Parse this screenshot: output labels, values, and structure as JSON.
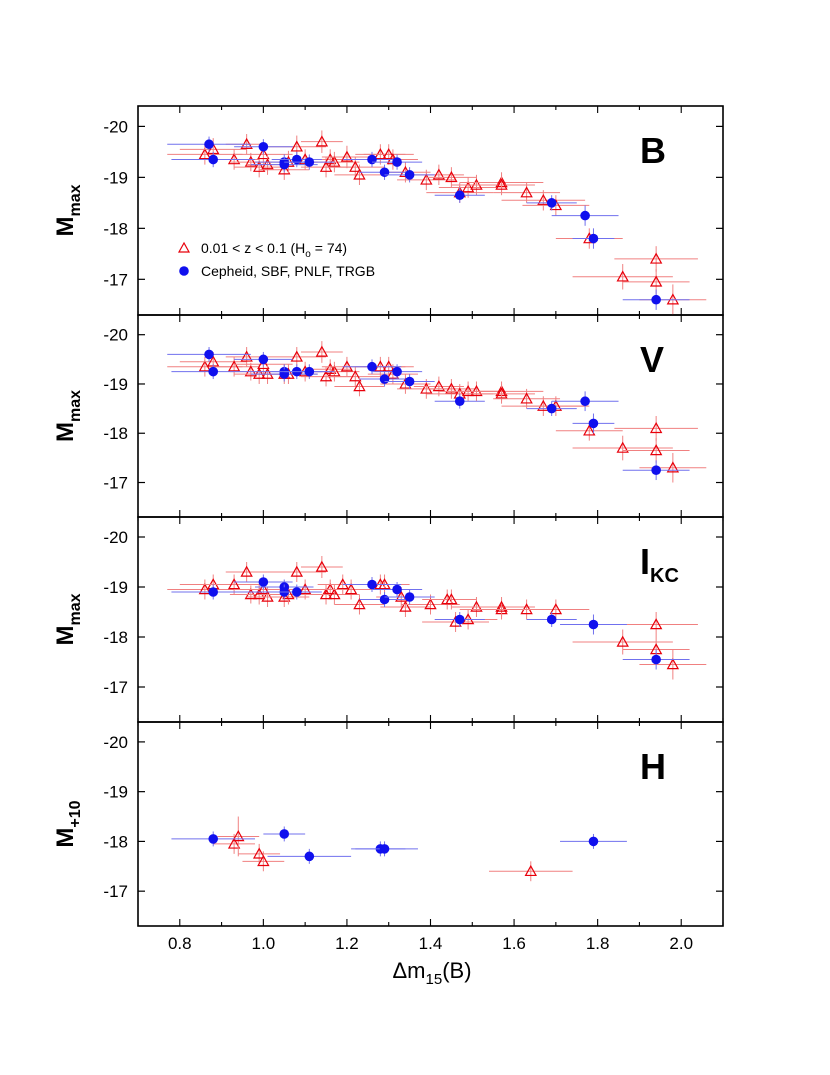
{
  "chart_data": {
    "type": "scatter",
    "xlabel_main": "Δm",
    "xlabel_sub": "15",
    "xlabel_tail": "(B)",
    "xlim": [
      0.7,
      2.1
    ],
    "xticks": [
      "0.8",
      "1.0",
      "1.2",
      "1.4",
      "1.6",
      "1.8",
      "2.0"
    ],
    "ylim": [
      -16.3,
      -20.4
    ],
    "yticks": [
      "-20",
      "-19",
      "-18",
      "-17"
    ],
    "legend": {
      "position": "lower-left of top panel",
      "triangle_pre": "0.01 < z < 0.1 (H",
      "triangle_sub": "o",
      "triangle_post": " = 74)",
      "circle_label": "Cepheid, SBF, PNLF, TRGB"
    },
    "colors": {
      "triangle": "#e8000b",
      "circle": "#1010ee",
      "tri_err": "#f08080",
      "circ_err": "#7070ee"
    },
    "panels": [
      {
        "band": "B",
        "band_sub": "",
        "ylabel_main": "M",
        "ylabel_sub": "max",
        "has_legend": true,
        "triangles": [
          [
            0.86,
            -19.45,
            0.09,
            0.2
          ],
          [
            0.88,
            -19.55,
            0.08,
            0.22
          ],
          [
            0.93,
            -19.35,
            0.06,
            0.2
          ],
          [
            0.96,
            -19.65,
            0.05,
            0.2
          ],
          [
            0.97,
            -19.3,
            0.05,
            0.18
          ],
          [
            0.99,
            -19.2,
            0.06,
            0.2
          ],
          [
            1.0,
            -19.45,
            0.07,
            0.22
          ],
          [
            1.01,
            -19.25,
            0.05,
            0.2
          ],
          [
            1.05,
            -19.15,
            0.06,
            0.2
          ],
          [
            1.06,
            -19.3,
            0.07,
            0.22
          ],
          [
            1.08,
            -19.6,
            0.07,
            0.22
          ],
          [
            1.1,
            -19.35,
            0.06,
            0.2
          ],
          [
            1.14,
            -19.7,
            0.05,
            0.22
          ],
          [
            1.15,
            -19.2,
            0.06,
            0.2
          ],
          [
            1.16,
            -19.35,
            0.05,
            0.2
          ],
          [
            1.17,
            -19.3,
            0.06,
            0.2
          ],
          [
            1.2,
            -19.4,
            0.06,
            0.22
          ],
          [
            1.22,
            -19.2,
            0.07,
            0.2
          ],
          [
            1.23,
            -19.05,
            0.06,
            0.2
          ],
          [
            1.28,
            -19.45,
            0.06,
            0.2
          ],
          [
            1.3,
            -19.45,
            0.06,
            0.2
          ],
          [
            1.31,
            -19.35,
            0.06,
            0.2
          ],
          [
            1.34,
            -19.1,
            0.06,
            0.2
          ],
          [
            1.39,
            -18.95,
            0.07,
            0.2
          ],
          [
            1.42,
            -19.05,
            0.06,
            0.2
          ],
          [
            1.45,
            -19.0,
            0.06,
            0.2
          ],
          [
            1.47,
            -18.7,
            0.08,
            0.2
          ],
          [
            1.49,
            -18.8,
            0.07,
            0.2
          ],
          [
            1.51,
            -18.85,
            0.06,
            0.2
          ],
          [
            1.57,
            -18.9,
            0.1,
            0.2
          ],
          [
            1.57,
            -18.85,
            0.08,
            0.2
          ],
          [
            1.63,
            -18.7,
            0.08,
            0.2
          ],
          [
            1.67,
            -18.55,
            0.1,
            0.2
          ],
          [
            1.7,
            -18.45,
            0.08,
            0.2
          ],
          [
            1.78,
            -17.8,
            0.08,
            0.2
          ],
          [
            1.86,
            -17.05,
            0.12,
            0.25
          ],
          [
            1.94,
            -17.4,
            0.1,
            0.25
          ],
          [
            1.94,
            -16.95,
            0.08,
            0.25
          ],
          [
            1.98,
            -16.6,
            0.08,
            0.3
          ]
        ],
        "circles": [
          [
            0.87,
            -19.65,
            0.1,
            0.15
          ],
          [
            0.88,
            -19.35,
            0.1,
            0.15
          ],
          [
            1.0,
            -19.6,
            0.07,
            0.15
          ],
          [
            1.05,
            -19.3,
            0.07,
            0.15
          ],
          [
            1.05,
            -19.25,
            0.08,
            0.15
          ],
          [
            1.08,
            -19.35,
            0.06,
            0.15
          ],
          [
            1.11,
            -19.3,
            0.06,
            0.15
          ],
          [
            1.26,
            -19.35,
            0.07,
            0.15
          ],
          [
            1.29,
            -19.1,
            0.06,
            0.15
          ],
          [
            1.32,
            -19.3,
            0.06,
            0.15
          ],
          [
            1.35,
            -19.05,
            0.06,
            0.15
          ],
          [
            1.47,
            -18.65,
            0.06,
            0.15
          ],
          [
            1.69,
            -18.5,
            0.06,
            0.15
          ],
          [
            1.77,
            -18.25,
            0.08,
            0.2
          ],
          [
            1.79,
            -17.8,
            0.05,
            0.2
          ],
          [
            1.94,
            -16.6,
            0.08,
            0.2
          ]
        ]
      },
      {
        "band": "V",
        "band_sub": "",
        "ylabel_main": "M",
        "ylabel_sub": "max",
        "has_legend": false,
        "triangles": [
          [
            0.86,
            -19.35,
            0.09,
            0.2
          ],
          [
            0.88,
            -19.45,
            0.08,
            0.2
          ],
          [
            0.93,
            -19.35,
            0.06,
            0.2
          ],
          [
            0.96,
            -19.55,
            0.05,
            0.2
          ],
          [
            0.97,
            -19.25,
            0.05,
            0.18
          ],
          [
            0.99,
            -19.2,
            0.06,
            0.2
          ],
          [
            1.0,
            -19.4,
            0.07,
            0.2
          ],
          [
            1.01,
            -19.2,
            0.05,
            0.2
          ],
          [
            1.05,
            -19.2,
            0.06,
            0.2
          ],
          [
            1.06,
            -19.2,
            0.07,
            0.2
          ],
          [
            1.08,
            -19.55,
            0.07,
            0.2
          ],
          [
            1.1,
            -19.25,
            0.06,
            0.2
          ],
          [
            1.14,
            -19.65,
            0.05,
            0.22
          ],
          [
            1.15,
            -19.15,
            0.06,
            0.2
          ],
          [
            1.16,
            -19.3,
            0.05,
            0.2
          ],
          [
            1.17,
            -19.25,
            0.06,
            0.2
          ],
          [
            1.2,
            -19.35,
            0.06,
            0.2
          ],
          [
            1.22,
            -19.15,
            0.07,
            0.2
          ],
          [
            1.23,
            -18.95,
            0.06,
            0.2
          ],
          [
            1.28,
            -19.35,
            0.06,
            0.2
          ],
          [
            1.3,
            -19.35,
            0.06,
            0.2
          ],
          [
            1.31,
            -19.2,
            0.06,
            0.2
          ],
          [
            1.34,
            -19.0,
            0.06,
            0.2
          ],
          [
            1.39,
            -18.9,
            0.07,
            0.2
          ],
          [
            1.42,
            -18.95,
            0.06,
            0.2
          ],
          [
            1.45,
            -18.9,
            0.06,
            0.2
          ],
          [
            1.47,
            -18.8,
            0.08,
            0.2
          ],
          [
            1.49,
            -18.85,
            0.07,
            0.2
          ],
          [
            1.51,
            -18.85,
            0.06,
            0.2
          ],
          [
            1.57,
            -18.85,
            0.1,
            0.2
          ],
          [
            1.57,
            -18.8,
            0.08,
            0.2
          ],
          [
            1.63,
            -18.7,
            0.08,
            0.2
          ],
          [
            1.67,
            -18.55,
            0.1,
            0.2
          ],
          [
            1.7,
            -18.55,
            0.08,
            0.2
          ],
          [
            1.78,
            -18.05,
            0.08,
            0.2
          ],
          [
            1.86,
            -17.7,
            0.12,
            0.25
          ],
          [
            1.94,
            -18.1,
            0.1,
            0.25
          ],
          [
            1.94,
            -17.65,
            0.08,
            0.25
          ],
          [
            1.98,
            -17.3,
            0.08,
            0.3
          ]
        ],
        "circles": [
          [
            0.87,
            -19.6,
            0.1,
            0.15
          ],
          [
            0.88,
            -19.25,
            0.1,
            0.15
          ],
          [
            1.0,
            -19.5,
            0.07,
            0.15
          ],
          [
            1.05,
            -19.25,
            0.07,
            0.15
          ],
          [
            1.05,
            -19.2,
            0.08,
            0.15
          ],
          [
            1.08,
            -19.25,
            0.06,
            0.15
          ],
          [
            1.11,
            -19.25,
            0.06,
            0.15
          ],
          [
            1.26,
            -19.35,
            0.07,
            0.15
          ],
          [
            1.29,
            -19.1,
            0.06,
            0.15
          ],
          [
            1.32,
            -19.25,
            0.06,
            0.15
          ],
          [
            1.35,
            -19.05,
            0.06,
            0.15
          ],
          [
            1.47,
            -18.65,
            0.06,
            0.15
          ],
          [
            1.69,
            -18.5,
            0.06,
            0.15
          ],
          [
            1.77,
            -18.65,
            0.08,
            0.2
          ],
          [
            1.79,
            -18.2,
            0.05,
            0.2
          ],
          [
            1.94,
            -17.25,
            0.08,
            0.2
          ]
        ]
      },
      {
        "band": "I",
        "band_sub": "KC",
        "ylabel_main": "M",
        "ylabel_sub": "max",
        "has_legend": false,
        "triangles": [
          [
            0.86,
            -18.95,
            0.09,
            0.2
          ],
          [
            0.88,
            -19.05,
            0.08,
            0.2
          ],
          [
            0.93,
            -19.05,
            0.06,
            0.2
          ],
          [
            0.96,
            -19.3,
            0.05,
            0.2
          ],
          [
            0.97,
            -18.85,
            0.05,
            0.18
          ],
          [
            0.99,
            -18.85,
            0.06,
            0.2
          ],
          [
            1.0,
            -18.95,
            0.07,
            0.2
          ],
          [
            1.01,
            -18.8,
            0.05,
            0.2
          ],
          [
            1.05,
            -18.8,
            0.06,
            0.2
          ],
          [
            1.06,
            -18.85,
            0.07,
            0.2
          ],
          [
            1.08,
            -19.3,
            0.07,
            0.2
          ],
          [
            1.1,
            -18.95,
            0.06,
            0.2
          ],
          [
            1.14,
            -19.4,
            0.05,
            0.22
          ],
          [
            1.15,
            -18.85,
            0.06,
            0.2
          ],
          [
            1.16,
            -18.95,
            0.05,
            0.2
          ],
          [
            1.17,
            -18.85,
            0.06,
            0.2
          ],
          [
            1.19,
            -19.05,
            0.06,
            0.2
          ],
          [
            1.21,
            -18.95,
            0.07,
            0.2
          ],
          [
            1.23,
            -18.65,
            0.06,
            0.2
          ],
          [
            1.28,
            -19.05,
            0.06,
            0.2
          ],
          [
            1.29,
            -19.05,
            0.06,
            0.2
          ],
          [
            1.33,
            -18.8,
            0.06,
            0.2
          ],
          [
            1.34,
            -18.6,
            0.06,
            0.2
          ],
          [
            1.4,
            -18.65,
            0.07,
            0.2
          ],
          [
            1.44,
            -18.75,
            0.06,
            0.2
          ],
          [
            1.45,
            -18.75,
            0.06,
            0.2
          ],
          [
            1.46,
            -18.3,
            0.08,
            0.2
          ],
          [
            1.49,
            -18.35,
            0.07,
            0.2
          ],
          [
            1.51,
            -18.6,
            0.06,
            0.2
          ],
          [
            1.57,
            -18.55,
            0.1,
            0.2
          ],
          [
            1.57,
            -18.6,
            0.08,
            0.2
          ],
          [
            1.63,
            -18.55,
            0.08,
            0.2
          ],
          [
            1.7,
            -18.55,
            0.08,
            0.2
          ],
          [
            1.86,
            -17.9,
            0.12,
            0.25
          ],
          [
            1.94,
            -18.25,
            0.1,
            0.25
          ],
          [
            1.94,
            -17.75,
            0.08,
            0.25
          ],
          [
            1.98,
            -17.45,
            0.08,
            0.3
          ]
        ],
        "circles": [
          [
            0.88,
            -18.9,
            0.1,
            0.15
          ],
          [
            1.0,
            -19.1,
            0.07,
            0.15
          ],
          [
            1.05,
            -19.0,
            0.07,
            0.15
          ],
          [
            1.05,
            -18.9,
            0.08,
            0.15
          ],
          [
            1.08,
            -18.9,
            0.06,
            0.15
          ],
          [
            1.26,
            -19.05,
            0.07,
            0.15
          ],
          [
            1.29,
            -18.75,
            0.06,
            0.15
          ],
          [
            1.32,
            -18.95,
            0.06,
            0.15
          ],
          [
            1.35,
            -18.8,
            0.06,
            0.15
          ],
          [
            1.47,
            -18.35,
            0.06,
            0.15
          ],
          [
            1.69,
            -18.35,
            0.06,
            0.15
          ],
          [
            1.79,
            -18.25,
            0.08,
            0.2
          ],
          [
            1.94,
            -17.55,
            0.08,
            0.2
          ]
        ]
      },
      {
        "band": "H",
        "band_sub": "",
        "ylabel_main": "M",
        "ylabel_sub": "+10",
        "has_legend": false,
        "triangles": [
          [
            0.93,
            -17.95,
            0.05,
            0.2
          ],
          [
            0.94,
            -18.1,
            0.05,
            0.4
          ],
          [
            0.99,
            -17.75,
            0.05,
            0.2
          ],
          [
            1.0,
            -17.6,
            0.05,
            0.2
          ],
          [
            1.64,
            -17.4,
            0.1,
            0.2
          ]
        ],
        "circles": [
          [
            0.88,
            -18.05,
            0.1,
            0.15
          ],
          [
            1.05,
            -18.15,
            0.05,
            0.15
          ],
          [
            1.11,
            -17.7,
            0.1,
            0.15
          ],
          [
            1.28,
            -17.85,
            0.06,
            0.15
          ],
          [
            1.29,
            -17.85,
            0.08,
            0.15
          ],
          [
            1.79,
            -18.0,
            0.08,
            0.15
          ]
        ]
      }
    ]
  }
}
